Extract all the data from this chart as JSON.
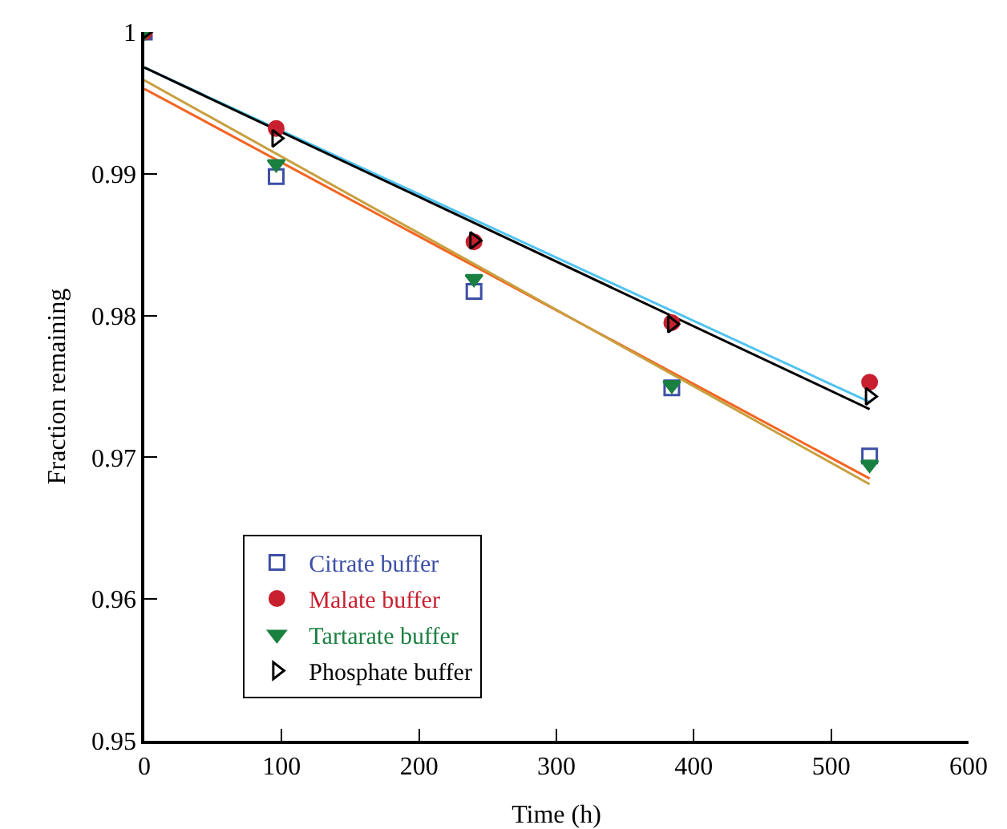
{
  "chart_data": {
    "type": "scatter",
    "xlabel": "Time (h)",
    "ylabel": "Fraction remaining",
    "xlim": [
      0,
      600
    ],
    "xticks": [
      0,
      100,
      200,
      300,
      400,
      500,
      600
    ],
    "ylim": [
      0.95,
      1
    ],
    "yticks": [
      0.95,
      0.96,
      0.97,
      0.98,
      0.99,
      1
    ],
    "grid": false,
    "legend": "bottom left",
    "series": [
      {
        "name": "Citrate buffer",
        "marker": "square",
        "color": "#3d4fa6",
        "x": [
          0,
          96,
          240,
          384,
          528
        ],
        "values": [
          1,
          0.9898,
          0.9817,
          0.9749,
          0.9701
        ]
      },
      {
        "name": "Malate buffer",
        "marker": "circle",
        "color": "#c8202f",
        "x": [
          0,
          96,
          240,
          384,
          528
        ],
        "values": [
          1,
          0.9932,
          0.9852,
          0.9795,
          0.9753
        ]
      },
      {
        "name": "Tartarate buffer",
        "marker": "triangle",
        "color": "#1a8040",
        "x": [
          0,
          96,
          240,
          384,
          528
        ],
        "values": [
          1,
          0.9907,
          0.9826,
          0.9751,
          0.9695
        ]
      },
      {
        "name": "Phosphate buffer",
        "marker": "triangle-right",
        "color": "#000000",
        "x": [
          0,
          96,
          240,
          384,
          528
        ],
        "values": [
          1,
          0.9925,
          0.9853,
          0.9794,
          0.9743
        ]
      },
      {
        "type": "line",
        "color": "#f26522",
        "x": [
          0,
          528
        ],
        "values": [
          0.996,
          0.9685
        ]
      },
      {
        "type": "line",
        "color": "#4fc3f0",
        "x": [
          0,
          528
        ],
        "values": [
          0.9975,
          0.9739
        ]
      },
      {
        "type": "line",
        "color": "#c8a040",
        "x": [
          0,
          528
        ],
        "values": [
          0.9966,
          0.9681
        ]
      },
      {
        "type": "line",
        "color": "#000000",
        "x": [
          0,
          528
        ],
        "values": [
          0.9975,
          0.9734
        ]
      }
    ]
  }
}
